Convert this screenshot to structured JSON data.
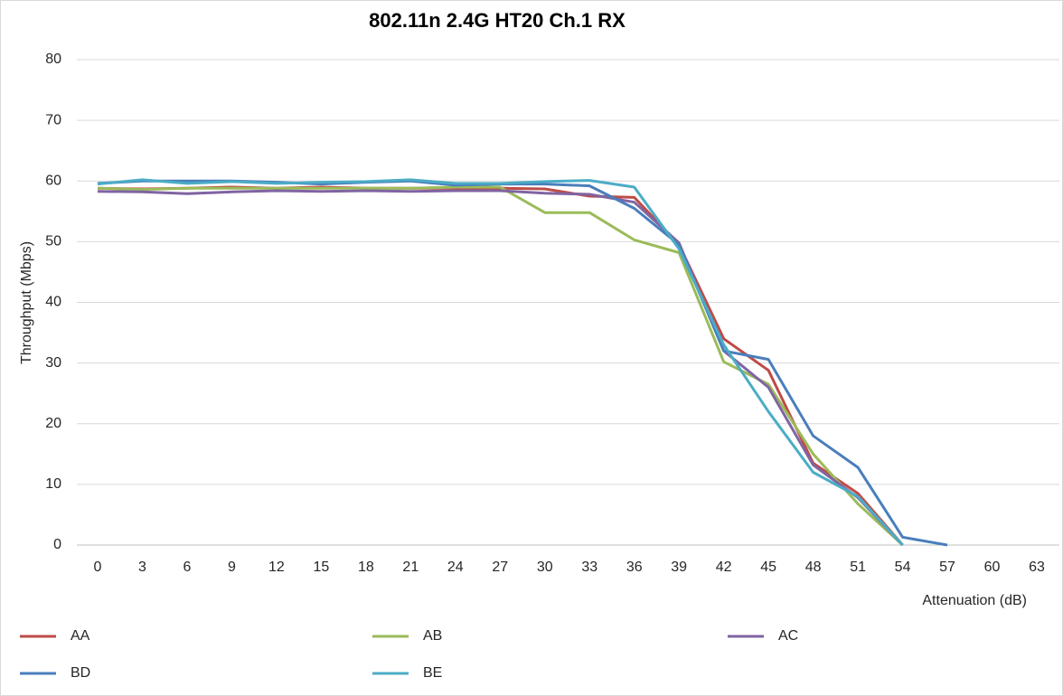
{
  "chart_data": {
    "type": "line",
    "title": "802.11n 2.4G HT20 Ch.1 RX",
    "x_label": "Attenuation (dB)",
    "y_label": "Throughput (Mbps)",
    "categories": [
      0,
      3,
      6,
      9,
      12,
      15,
      18,
      21,
      24,
      27,
      30,
      33,
      36,
      39,
      42,
      45,
      48,
      51,
      54,
      57,
      60,
      63
    ],
    "series": [
      {
        "name": "AA",
        "color": "#be4b48",
        "values": [
          58.8,
          58.7,
          58.8,
          59,
          58.8,
          59,
          58.8,
          58.8,
          58.8,
          58.8,
          58.7,
          57.5,
          57.3,
          49.5,
          34,
          28.8,
          13.5,
          8.5,
          0,
          null,
          null,
          null
        ]
      },
      {
        "name": "AB",
        "color": "#9bbb59",
        "values": [
          58.8,
          58.6,
          58.8,
          58.8,
          58.8,
          58.8,
          58.8,
          58.8,
          59,
          59,
          54.8,
          54.8,
          50.3,
          48.2,
          30.2,
          26.5,
          15,
          6.8,
          0,
          null,
          null,
          null
        ]
      },
      {
        "name": "AC",
        "color": "#8064a2",
        "values": [
          58.3,
          58.2,
          57.9,
          58.2,
          58.4,
          58.3,
          58.4,
          58.3,
          58.4,
          58.4,
          58,
          57.8,
          56.5,
          49.8,
          32,
          26,
          13.2,
          7.8,
          0,
          null,
          null,
          null
        ]
      },
      {
        "name": "BD",
        "color": "#4a7ebb",
        "values": [
          59.6,
          60,
          60,
          60,
          59.8,
          59.5,
          59.8,
          60,
          59.3,
          59.5,
          59.5,
          59.2,
          55.5,
          49.5,
          32,
          30.6,
          18,
          12.8,
          1.3,
          0,
          null,
          null
        ]
      },
      {
        "name": "BE",
        "color": "#4bacc6",
        "values": [
          59.5,
          60.2,
          59.6,
          59.9,
          59.6,
          59.8,
          59.9,
          60.2,
          59.6,
          59.6,
          59.9,
          60.1,
          59,
          48.8,
          33,
          22,
          12,
          8,
          0,
          null,
          null,
          null
        ]
      }
    ],
    "ylim": [
      0,
      80
    ],
    "yticks": [
      0,
      10,
      20,
      30,
      40,
      50,
      60,
      70,
      80
    ],
    "grid": true,
    "legend": "bottom"
  }
}
